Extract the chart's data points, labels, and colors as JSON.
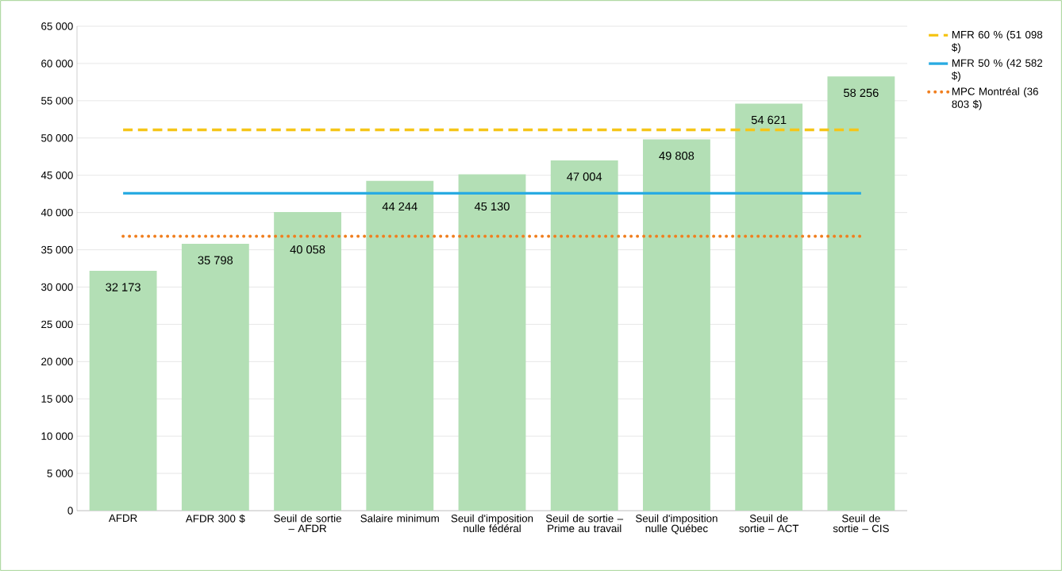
{
  "chart_data": {
    "type": "bar",
    "categories": [
      "AFDR",
      "AFDR 300 $",
      "Seuil de sortie – AFDR",
      "Salaire minimum",
      "Seuil d'imposition nulle fédéral",
      "Seuil de sortie – Prime au travail",
      "Seuil d'imposition nulle Québec",
      "Seuil de sortie – ACT",
      "Seuil de sortie – CIS"
    ],
    "series": [
      {
        "color": "#b3dfb5",
        "values": [
          32173,
          35798,
          40058,
          44244,
          45130,
          47004,
          49808,
          54621,
          58256
        ],
        "value_labels": [
          "32 173",
          "35 798",
          "40 058",
          "44 244",
          "45 130",
          "47 004",
          "49 808",
          "54 621",
          "58 256"
        ]
      },
      {
        "type": "line",
        "name": "MFR 60 % (51 098 $)",
        "color": "#f5c518",
        "line_style": "dashed",
        "values": [
          51098,
          51098,
          51098,
          51098,
          51098,
          51098,
          51098,
          51098,
          51098
        ]
      },
      {
        "type": "line",
        "name": "MFR 50 % (42 582 $)",
        "color": "#29abe2",
        "line_style": "solid",
        "values": [
          42582,
          42582,
          42582,
          42582,
          42582,
          42582,
          42582,
          42582,
          42582
        ]
      },
      {
        "type": "line",
        "name": "MPC Montréal (36 803 $)",
        "color": "#f07f1f",
        "line_style": "dotted",
        "values": [
          36803,
          36803,
          36803,
          36803,
          36803,
          36803,
          36803,
          36803,
          36803
        ]
      }
    ],
    "ylim": [
      0,
      65000
    ],
    "yticks": [
      {
        "value": 0,
        "label": "0"
      },
      {
        "value": 5000,
        "label": "5 000"
      },
      {
        "value": 10000,
        "label": "10 000"
      },
      {
        "value": 15000,
        "label": "15 000"
      },
      {
        "value": 20000,
        "label": "20 000"
      },
      {
        "value": 25000,
        "label": "25 000"
      },
      {
        "value": 30000,
        "label": "30 000"
      },
      {
        "value": 35000,
        "label": "35 000"
      },
      {
        "value": 40000,
        "label": "40 000"
      },
      {
        "value": 45000,
        "label": "45 000"
      },
      {
        "value": 50000,
        "label": "50 000"
      },
      {
        "value": 55000,
        "label": "55 000"
      },
      {
        "value": 60000,
        "label": "60 000"
      },
      {
        "value": 65000,
        "label": "65 000"
      }
    ],
    "grid": "y",
    "legend": "right",
    "marker": "none"
  }
}
